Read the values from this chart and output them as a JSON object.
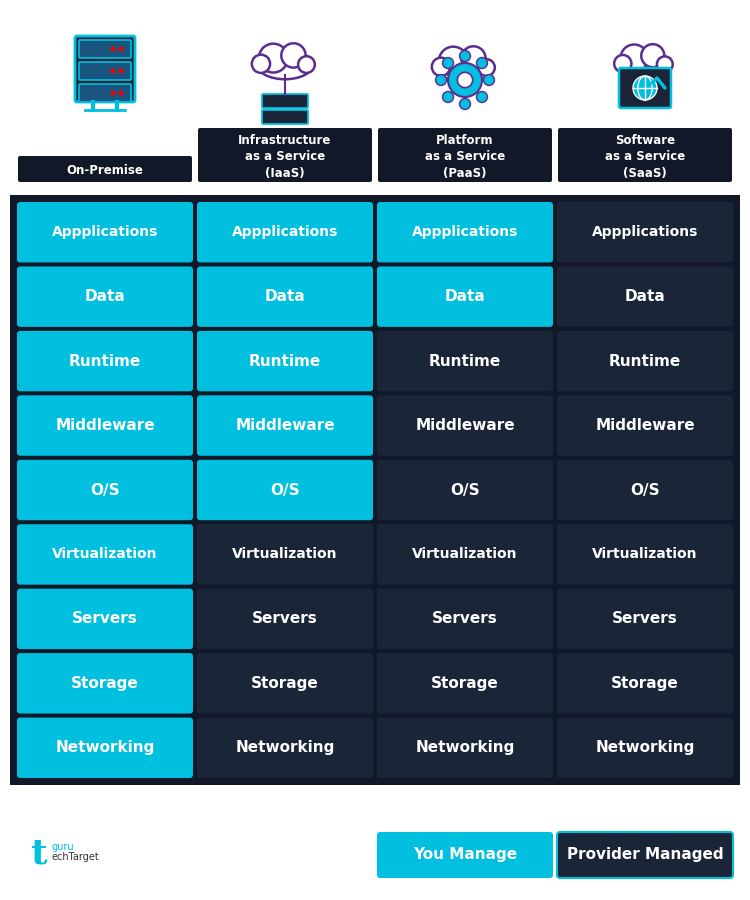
{
  "columns": [
    "On-Premise",
    "Infrastructure\nas a Service\n(IaaS)",
    "Platform\nas a Service\n(PaaS)",
    "Software\nas a Service\n(SaaS)"
  ],
  "rows": [
    "Appplications",
    "Data",
    "Runtime",
    "Middleware",
    "O/S",
    "Virtualization",
    "Servers",
    "Storage",
    "Networking"
  ],
  "colors": {
    "you": "#00BFDF",
    "provider": "#1A2538",
    "you_text": "#FFFFFF",
    "provider_text": "#FFFFFF",
    "background": "#FFFFFF",
    "grid_bg": "#111827",
    "border_gap": "#111827",
    "header_text": "#1A2538"
  },
  "cell_colors": [
    [
      "you",
      "you",
      "you",
      "provider"
    ],
    [
      "you",
      "you",
      "you",
      "provider"
    ],
    [
      "you",
      "you",
      "provider",
      "provider"
    ],
    [
      "you",
      "you",
      "provider",
      "provider"
    ],
    [
      "you",
      "you",
      "provider",
      "provider"
    ],
    [
      "you",
      "provider",
      "provider",
      "provider"
    ],
    [
      "you",
      "provider",
      "provider",
      "provider"
    ],
    [
      "you",
      "provider",
      "provider",
      "provider"
    ],
    [
      "you",
      "provider",
      "provider",
      "provider"
    ]
  ],
  "legend": {
    "you_label": "You Manage",
    "provider_label": "Provider Managed"
  },
  "fig_width": 7.5,
  "fig_height": 9.0
}
